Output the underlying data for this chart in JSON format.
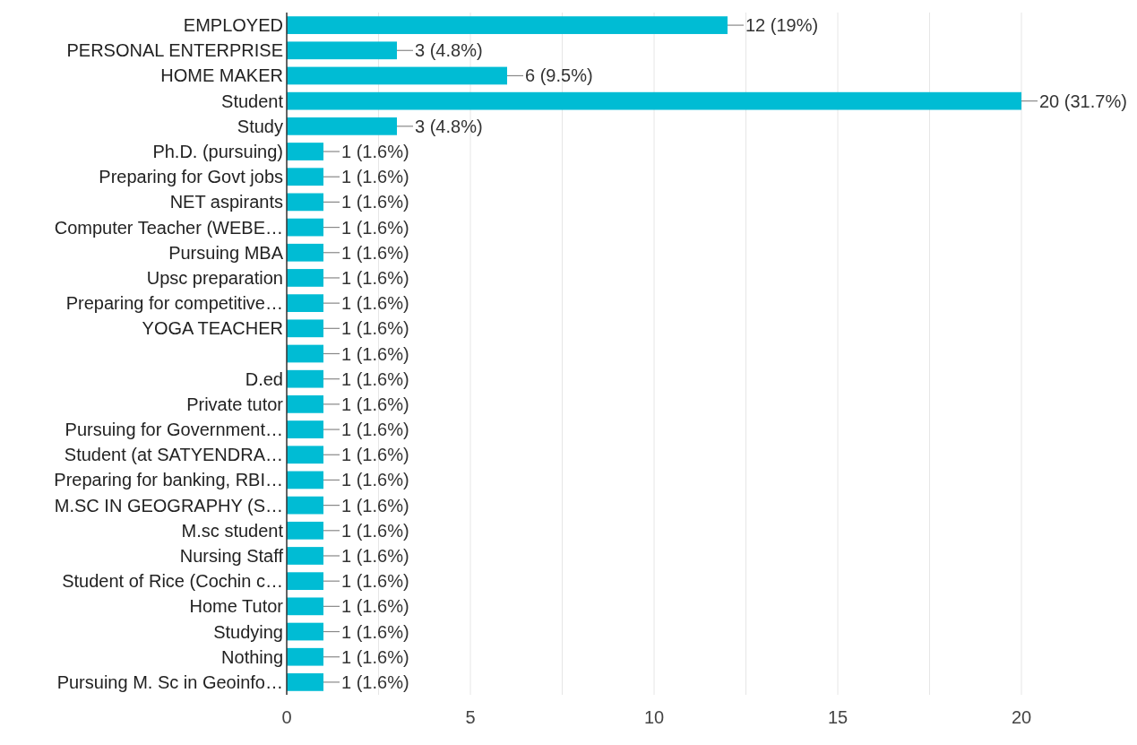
{
  "chart_data": {
    "type": "bar",
    "orientation": "horizontal",
    "categories": [
      "EMPLOYED",
      "PERSONAL ENTERPRISE",
      "HOME MAKER",
      "Student",
      "Study",
      "Ph.D. (pursuing)",
      "Preparing for Govt jobs",
      "NET aspirants",
      "Computer Teacher (WEBE…",
      "Pursuing MBA",
      "Upsc preparation",
      "Preparing for competitive…",
      "YOGA TEACHER",
      null,
      "D.ed",
      "Private tutor",
      "Pursuing for Government…",
      "Student (at SATYENDRA…",
      "Preparing for banking, RBI…",
      "M.SC IN GEOGRAPHY (S…",
      "M.sc student",
      "Nursing Staff",
      "Student of Rice (Cochin c…",
      "Home Tutor",
      "Studying",
      "Nothing",
      "Pursuing M. Sc in Geoinfo…"
    ],
    "values": [
      12,
      3,
      6,
      20,
      3,
      1,
      1,
      1,
      1,
      1,
      1,
      1,
      1,
      1,
      1,
      1,
      1,
      1,
      1,
      1,
      1,
      1,
      1,
      1,
      1,
      1,
      1
    ],
    "value_labels": [
      "12 (19%)",
      "3 (4.8%)",
      "6 (9.5%)",
      "20 (31.7%)",
      "3 (4.8%)",
      "1 (1.6%)",
      "1 (1.6%)",
      "1 (1.6%)",
      "1 (1.6%)",
      "1 (1.6%)",
      "1 (1.6%)",
      "1 (1.6%)",
      "1 (1.6%)",
      "1 (1.6%)",
      "1 (1.6%)",
      "1 (1.6%)",
      "1 (1.6%)",
      "1 (1.6%)",
      "1 (1.6%)",
      "1 (1.6%)",
      "1 (1.6%)",
      "1 (1.6%)",
      "1 (1.6%)",
      "1 (1.6%)",
      "1 (1.6%)",
      "1 (1.6%)",
      "1 (1.6%)"
    ],
    "color": "#00bcd4",
    "xlim": [
      0,
      20
    ],
    "xticks": [
      0,
      {
        "value": 2.5,
        "label": null
      },
      5,
      {
        "value": 7.5,
        "label": null
      },
      10,
      {
        "value": 12.5,
        "label": null
      },
      15,
      {
        "value": 17.5,
        "label": null
      },
      20
    ],
    "grid": "x"
  }
}
